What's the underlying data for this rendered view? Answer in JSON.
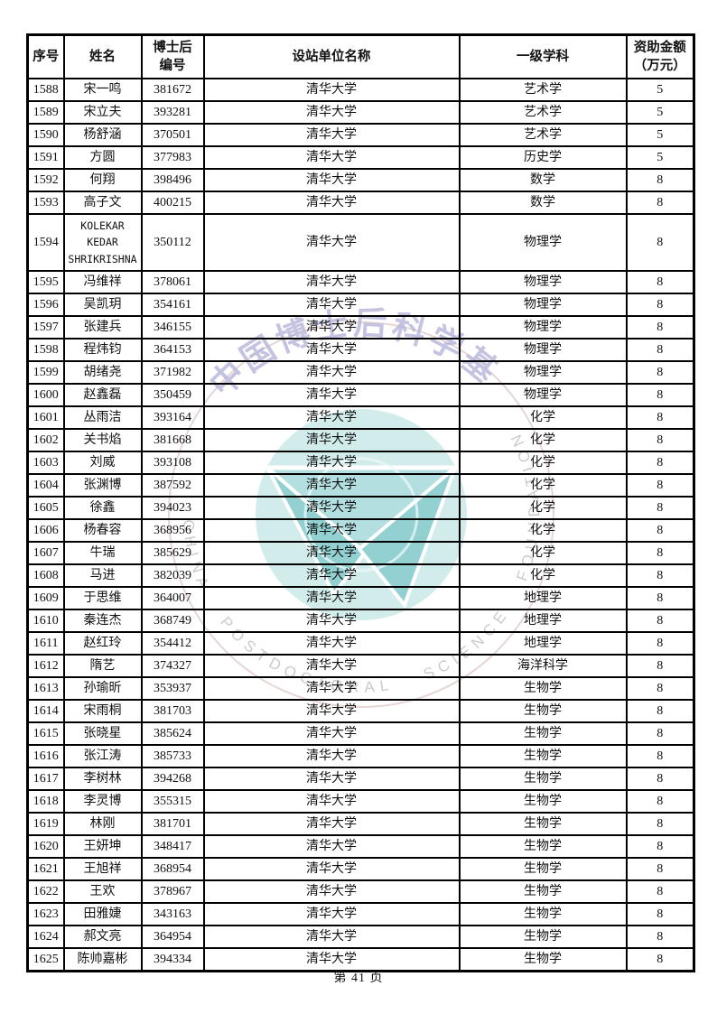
{
  "document": {
    "footer_page_label": "第 41 页"
  },
  "table": {
    "columns": [
      {
        "key": "serial",
        "label": "序号"
      },
      {
        "key": "name",
        "label": "姓名"
      },
      {
        "key": "postdoc-id",
        "label": "博士后\n编号"
      },
      {
        "key": "institution",
        "label": "设站单位名称"
      },
      {
        "key": "discipline",
        "label": "一级学科"
      },
      {
        "key": "amount",
        "label": "资助金额\n（万元）"
      }
    ],
    "rows": [
      [
        "1588",
        "宋一鸣",
        "381672",
        "清华大学",
        "艺术学",
        "5"
      ],
      [
        "1589",
        "宋立夫",
        "393281",
        "清华大学",
        "艺术学",
        "5"
      ],
      [
        "1590",
        "杨舒涵",
        "370501",
        "清华大学",
        "艺术学",
        "5"
      ],
      [
        "1591",
        "方圆",
        "377983",
        "清华大学",
        "历史学",
        "5"
      ],
      [
        "1592",
        "何翔",
        "398496",
        "清华大学",
        "数学",
        "8"
      ],
      [
        "1593",
        "高子文",
        "400215",
        "清华大学",
        "数学",
        "8"
      ],
      [
        "1594",
        "KOLEKAR KEDAR SHRIKRISHNA",
        "350112",
        "清华大学",
        "物理学",
        "8"
      ],
      [
        "1595",
        "冯维祥",
        "378061",
        "清华大学",
        "物理学",
        "8"
      ],
      [
        "1596",
        "吴凯玥",
        "354161",
        "清华大学",
        "物理学",
        "8"
      ],
      [
        "1597",
        "张建兵",
        "346155",
        "清华大学",
        "物理学",
        "8"
      ],
      [
        "1598",
        "程炜钧",
        "364153",
        "清华大学",
        "物理学",
        "8"
      ],
      [
        "1599",
        "胡绪尧",
        "371982",
        "清华大学",
        "物理学",
        "8"
      ],
      [
        "1600",
        "赵鑫磊",
        "350459",
        "清华大学",
        "物理学",
        "8"
      ],
      [
        "1601",
        "丛雨洁",
        "393164",
        "清华大学",
        "化学",
        "8"
      ],
      [
        "1602",
        "关书焰",
        "381668",
        "清华大学",
        "化学",
        "8"
      ],
      [
        "1603",
        "刘威",
        "393108",
        "清华大学",
        "化学",
        "8"
      ],
      [
        "1604",
        "张渊博",
        "387592",
        "清华大学",
        "化学",
        "8"
      ],
      [
        "1605",
        "徐鑫",
        "394023",
        "清华大学",
        "化学",
        "8"
      ],
      [
        "1606",
        "杨春容",
        "368956",
        "清华大学",
        "化学",
        "8"
      ],
      [
        "1607",
        "牛瑞",
        "385629",
        "清华大学",
        "化学",
        "8"
      ],
      [
        "1608",
        "马进",
        "382039",
        "清华大学",
        "化学",
        "8"
      ],
      [
        "1609",
        "于思维",
        "364007",
        "清华大学",
        "地理学",
        "8"
      ],
      [
        "1610",
        "秦连杰",
        "368749",
        "清华大学",
        "地理学",
        "8"
      ],
      [
        "1611",
        "赵红玲",
        "354412",
        "清华大学",
        "地理学",
        "8"
      ],
      [
        "1612",
        "隋艺",
        "374327",
        "清华大学",
        "海洋科学",
        "8"
      ],
      [
        "1613",
        "孙瑜昕",
        "353937",
        "清华大学",
        "生物学",
        "8"
      ],
      [
        "1614",
        "宋雨桐",
        "381703",
        "清华大学",
        "生物学",
        "8"
      ],
      [
        "1615",
        "张晓星",
        "385624",
        "清华大学",
        "生物学",
        "8"
      ],
      [
        "1616",
        "张江涛",
        "385733",
        "清华大学",
        "生物学",
        "8"
      ],
      [
        "1617",
        "李树林",
        "394268",
        "清华大学",
        "生物学",
        "8"
      ],
      [
        "1618",
        "李灵博",
        "355315",
        "清华大学",
        "生物学",
        "8"
      ],
      [
        "1619",
        "林刚",
        "381701",
        "清华大学",
        "生物学",
        "8"
      ],
      [
        "1620",
        "王妍坤",
        "348417",
        "清华大学",
        "生物学",
        "8"
      ],
      [
        "1621",
        "王旭祥",
        "368954",
        "清华大学",
        "生物学",
        "8"
      ],
      [
        "1622",
        "王欢",
        "378967",
        "清华大学",
        "生物学",
        "8"
      ],
      [
        "1623",
        "田雅婕",
        "343163",
        "清华大学",
        "生物学",
        "8"
      ],
      [
        "1624",
        "郝文亮",
        "364954",
        "清华大学",
        "生物学",
        "8"
      ],
      [
        "1625",
        "陈帅嘉彬",
        "394334",
        "清华大学",
        "生物学",
        "8"
      ]
    ]
  },
  "watermark": {
    "circle_text_cn": "中国博士后科学基金",
    "circle_text_en": "CHINA POSTDOCTORAL SCIENCE FOUNDATION",
    "colors": {
      "ring": "#e6d6d6",
      "calligraphy_lavender": "#b6b6dc",
      "en_text": "#c6c6c6",
      "emblem_bg_teal": "#d2ecec",
      "emblem_mid_teal": "#b3dfe0",
      "emblem_dark_teal": "#93d0d1",
      "emblem_ring_white": "#eef8f8"
    }
  }
}
